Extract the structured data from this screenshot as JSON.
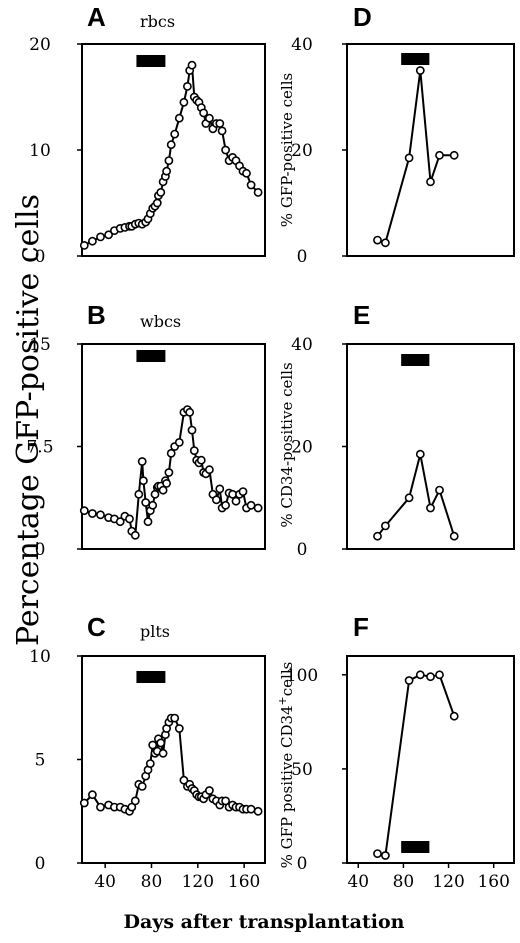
{
  "figure": {
    "ylabel": "Percentage  GFP-positive cells",
    "xlabel": "Days after transplantation"
  },
  "chart_data": [
    {
      "panel": "A",
      "type": "line",
      "label": "rbcs",
      "ylabel": "",
      "xlim": [
        20,
        178
      ],
      "ylim": [
        0,
        20
      ],
      "xticks": [],
      "yticks": [
        "0",
        "10",
        "20"
      ],
      "ytick_values": [
        0,
        10,
        20
      ],
      "bar": [
        67,
        92
      ],
      "x": [
        22,
        29,
        36,
        43,
        48,
        53,
        57,
        61,
        63,
        66,
        69,
        72,
        75,
        77,
        79,
        81,
        83,
        85,
        86,
        88,
        90,
        92,
        93,
        95,
        97,
        100,
        104,
        108,
        111,
        113,
        115,
        117,
        119,
        121,
        123,
        125,
        127,
        130,
        133,
        136,
        139,
        141,
        144,
        147,
        150,
        153,
        156,
        159,
        162,
        166,
        172
      ],
      "y": [
        1,
        1.4,
        1.8,
        2,
        2.4,
        2.6,
        2.7,
        2.8,
        2.8,
        3,
        3.1,
        3,
        3.2,
        3.5,
        4,
        4.5,
        4.7,
        5,
        5.7,
        6,
        7,
        7.5,
        8,
        9,
        10.5,
        11.5,
        13,
        14.5,
        16,
        17.5,
        18,
        15,
        14.7,
        14.5,
        14,
        13.5,
        12.5,
        13,
        12,
        12.5,
        12.5,
        11.8,
        10,
        9,
        9.3,
        9,
        8.5,
        8,
        7.8,
        6.7,
        6
      ]
    },
    {
      "panel": "B",
      "type": "line",
      "label": "wbcs",
      "ylabel": "",
      "xlim": [
        20,
        178
      ],
      "ylim": [
        0,
        15
      ],
      "xticks": [],
      "yticks": [
        "0",
        "7.5",
        "15"
      ],
      "ytick_values": [
        0,
        7.5,
        15
      ],
      "bar": [
        67,
        92
      ],
      "x": [
        22,
        29,
        36,
        43,
        48,
        53,
        57,
        61,
        63,
        66,
        69,
        72,
        73,
        75,
        77,
        79,
        81,
        83,
        85,
        86,
        88,
        90,
        92,
        93,
        95,
        97,
        100,
        104,
        108,
        111,
        113,
        115,
        117,
        119,
        121,
        123,
        125,
        127,
        130,
        133,
        136,
        139,
        141,
        144,
        147,
        150,
        153,
        156,
        159,
        162,
        166,
        172
      ],
      "y": [
        2.8,
        2.6,
        2.5,
        2.3,
        2.2,
        2,
        2.4,
        2.2,
        1.3,
        1,
        4,
        6.4,
        5,
        3.4,
        2,
        2.8,
        3.2,
        4,
        4.5,
        4.6,
        4.6,
        4.3,
        5,
        4.8,
        5.6,
        7,
        7.5,
        7.8,
        10,
        10.2,
        10,
        8.7,
        7.2,
        6.5,
        6.3,
        6.5,
        5.6,
        5.5,
        5.8,
        4,
        3.6,
        4.4,
        3,
        3.2,
        4.1,
        4,
        3.5,
        4,
        4.2,
        3,
        3.2,
        3
      ]
    },
    {
      "panel": "C",
      "type": "line",
      "label": "plts",
      "ylabel": "",
      "xlim": [
        20,
        178
      ],
      "ylim": [
        0,
        10
      ],
      "xticks": [
        "40",
        "80",
        "120",
        "160"
      ],
      "xtick_values": [
        40,
        80,
        120,
        160
      ],
      "yticks": [
        "0",
        "5",
        "10"
      ],
      "ytick_values": [
        0,
        5,
        10
      ],
      "bar": [
        67,
        92
      ],
      "x": [
        22,
        29,
        36,
        43,
        48,
        53,
        57,
        61,
        63,
        66,
        69,
        72,
        75,
        77,
        79,
        81,
        83,
        85,
        86,
        88,
        90,
        92,
        93,
        95,
        97,
        100,
        104,
        108,
        111,
        113,
        115,
        117,
        119,
        121,
        123,
        125,
        127,
        130,
        133,
        136,
        139,
        141,
        144,
        147,
        150,
        153,
        156,
        159,
        162,
        166,
        172
      ],
      "y": [
        2.9,
        3.3,
        2.7,
        2.8,
        2.7,
        2.7,
        2.6,
        2.5,
        2.7,
        3,
        3.8,
        3.7,
        4.2,
        4.5,
        4.8,
        5.7,
        5.3,
        5.4,
        6,
        5.8,
        5.3,
        6.2,
        6.5,
        6.8,
        7,
        7,
        6.5,
        4,
        3.7,
        3.8,
        3.6,
        3.5,
        3.3,
        3.2,
        3.2,
        3.1,
        3.3,
        3.5,
        3.1,
        3,
        2.8,
        3,
        3,
        2.7,
        2.8,
        2.7,
        2.7,
        2.6,
        2.6,
        2.6,
        2.5
      ]
    },
    {
      "panel": "D",
      "type": "line",
      "label": "",
      "ylabel": "% GFP-positive cells",
      "xlim": [
        30,
        178
      ],
      "ylim": [
        0,
        40
      ],
      "xticks": [],
      "yticks": [
        "0",
        "20",
        "40"
      ],
      "ytick_values": [
        0,
        20,
        40
      ],
      "bar": [
        78,
        103
      ],
      "x": [
        57,
        64,
        85,
        95,
        104,
        112,
        125
      ],
      "y": [
        3,
        2.5,
        18.5,
        35,
        14,
        19,
        19
      ]
    },
    {
      "panel": "E",
      "type": "line",
      "label": "",
      "ylabel": "% CD34-positive cells",
      "xlim": [
        30,
        178
      ],
      "ylim": [
        0,
        40
      ],
      "xticks": [],
      "yticks": [
        "0",
        "20",
        "40"
      ],
      "ytick_values": [
        0,
        20,
        40
      ],
      "bar": [
        78,
        103
      ],
      "x": [
        57,
        64,
        85,
        95,
        104,
        112,
        125
      ],
      "y": [
        2.5,
        4.5,
        10,
        18.5,
        8,
        11.5,
        2.5
      ]
    },
    {
      "panel": "F",
      "type": "line",
      "label": "",
      "ylabel": "% GFP positive CD34+cells",
      "xlim": [
        30,
        178
      ],
      "ylim": [
        0,
        110
      ],
      "xticks": [
        "40",
        "80",
        "120",
        "160"
      ],
      "xtick_values": [
        40,
        80,
        120,
        160
      ],
      "yticks": [
        "0",
        "50",
        "100"
      ],
      "ytick_values": [
        0,
        50,
        100
      ],
      "bar": [
        78,
        103
      ],
      "x": [
        57,
        64,
        85,
        95,
        104,
        112,
        125
      ],
      "y": [
        5,
        4,
        97,
        100,
        99,
        100,
        78
      ]
    }
  ]
}
